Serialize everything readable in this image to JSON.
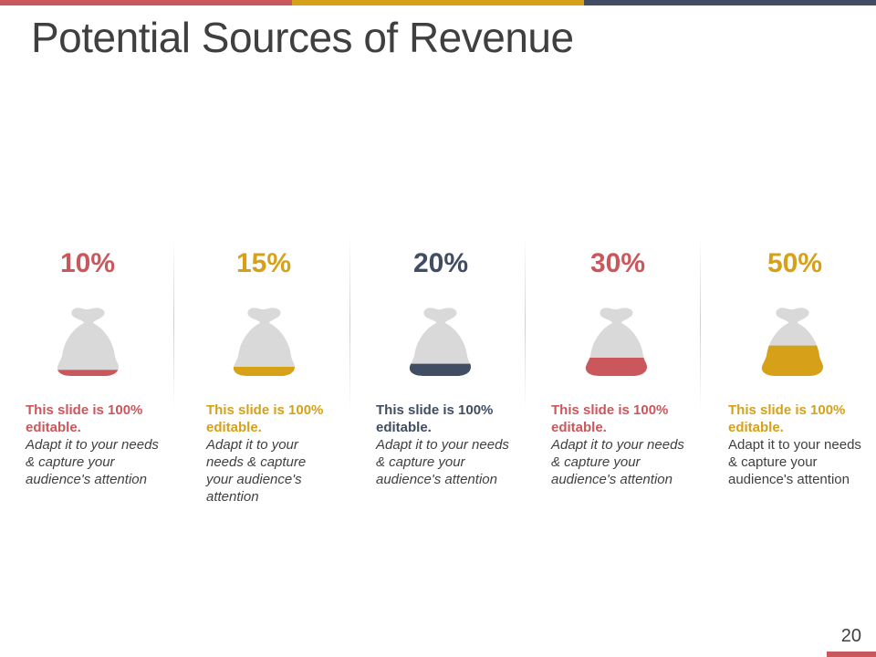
{
  "slide": {
    "title": "Potential Sources of Revenue",
    "page_number": "20"
  },
  "colors": {
    "red": "#c9575c",
    "gold": "#d6a119",
    "navy": "#404d63",
    "bag": "#d9d9d9"
  },
  "items": [
    {
      "percent": "10%",
      "fill_fraction": 0.1,
      "color": "red",
      "heading": "This slide is 100% editable.",
      "body": "Adapt it to your needs & capture your audience's attention"
    },
    {
      "percent": "15%",
      "fill_fraction": 0.15,
      "color": "gold",
      "heading": "This slide is 100% editable.",
      "body": "Adapt it to your needs & capture your audience's attention"
    },
    {
      "percent": "20%",
      "fill_fraction": 0.2,
      "color": "navy",
      "heading": "This slide is 100% editable.",
      "body": "Adapt it to your needs & capture your audience's attention"
    },
    {
      "percent": "30%",
      "fill_fraction": 0.3,
      "color": "red",
      "heading": "This slide is 100% editable.",
      "body": "Adapt it to your needs & capture your audience's attention"
    },
    {
      "percent": "50%",
      "fill_fraction": 0.5,
      "color": "gold",
      "heading": "This slide is 100% editable.",
      "body": "Adapt it to your needs & capture your audience's attention"
    }
  ]
}
